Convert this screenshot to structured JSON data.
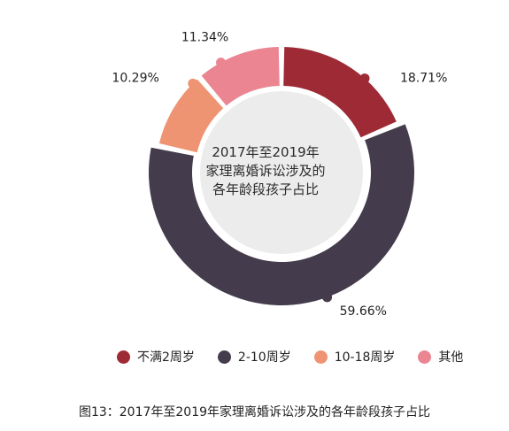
{
  "chart_data": {
    "type": "pie",
    "style": "donut",
    "center_title_lines": [
      "2017年至2019年",
      "家理离婚诉讼涉及的",
      "各年龄段孩子占比"
    ],
    "categories": [
      "不满2周岁",
      "2-10周岁",
      "10-18周岁",
      "其他"
    ],
    "values": [
      18.71,
      59.66,
      10.29,
      11.34
    ],
    "value_labels": [
      "18.71%",
      "59.66%",
      "10.29%",
      "11.34%"
    ],
    "colors": [
      "#9d2a35",
      "#443c4c",
      "#ee9473",
      "#ea8591"
    ],
    "legend_position": "bottom",
    "caption": "图13：2017年至2019年家理离婚诉讼涉及的各年龄段孩子占比"
  }
}
